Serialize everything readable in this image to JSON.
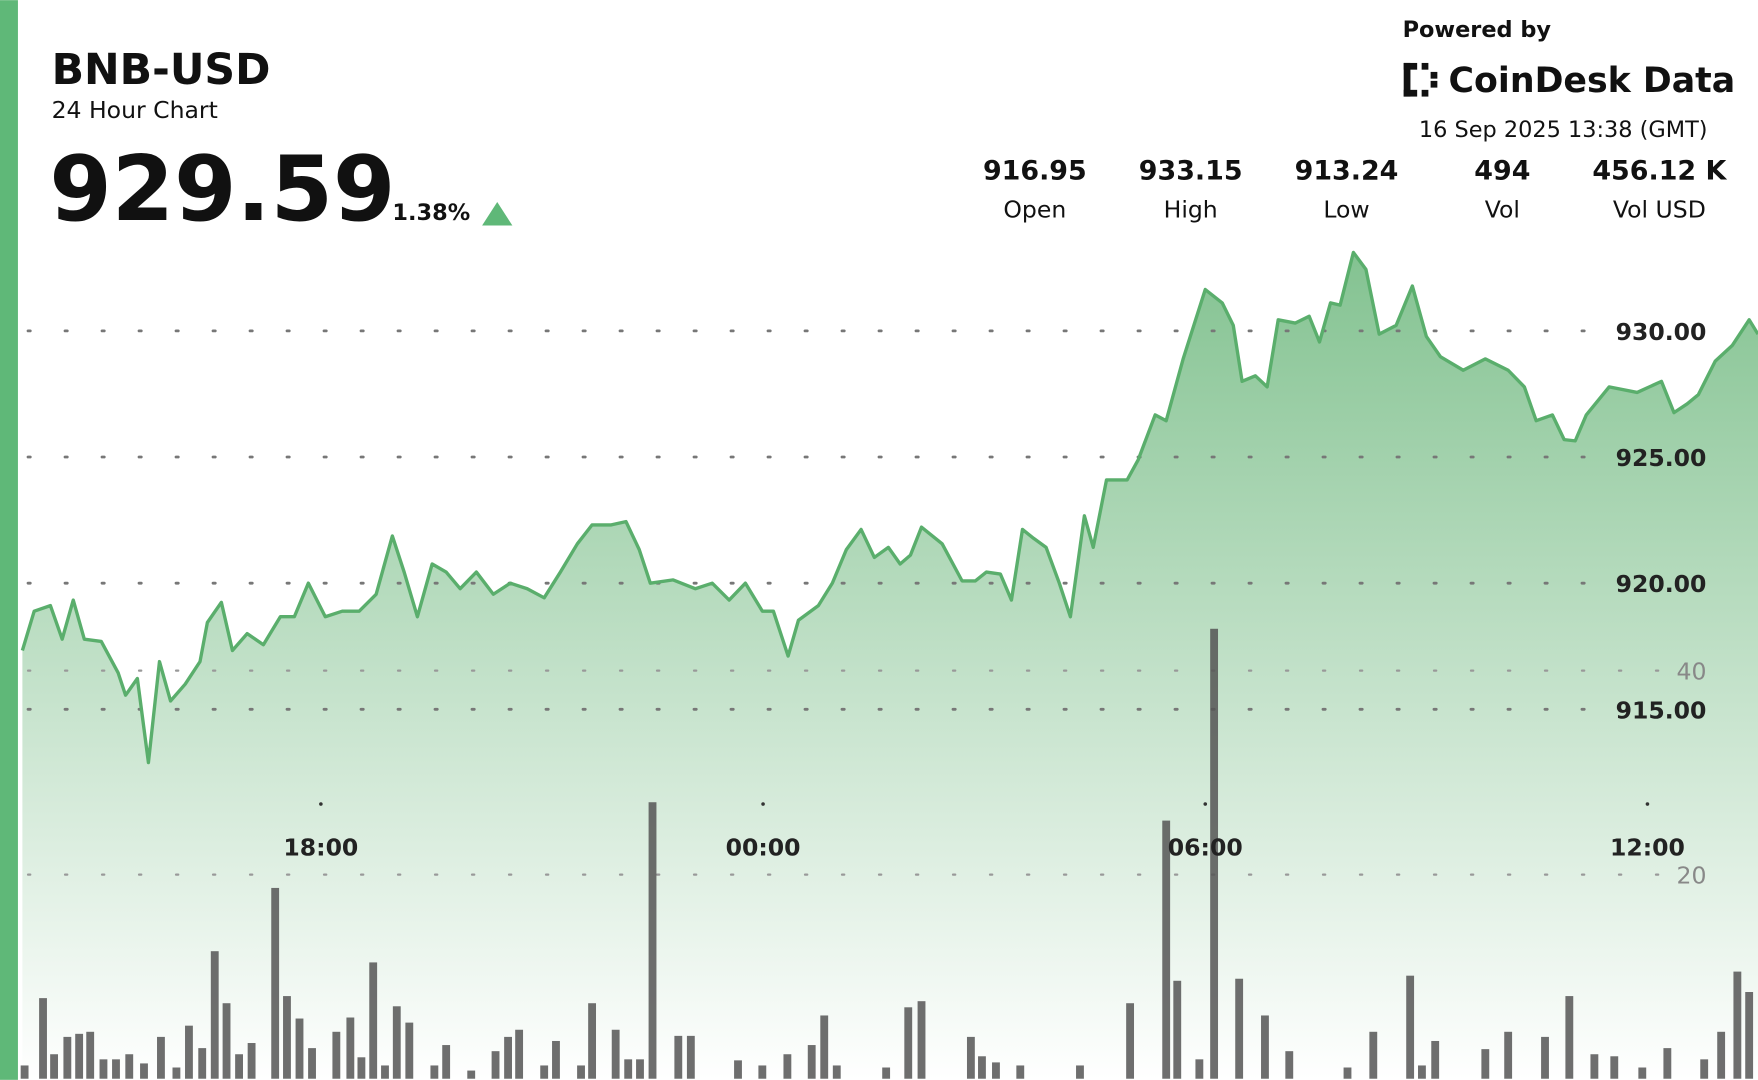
{
  "header": {
    "symbol": "BNB-USD",
    "subtitle": "24 Hour Chart",
    "price": "929.59",
    "change": "1.38%",
    "powered_by": "Powered by",
    "brand": "CoinDesk Data",
    "timestamp": "16 Sep 2025 13:38 (GMT)"
  },
  "stats": [
    {
      "value": "916.95",
      "label": "Open"
    },
    {
      "value": "933.15",
      "label": "High"
    },
    {
      "value": "913.24",
      "label": "Low"
    },
    {
      "value": "494",
      "label": "Vol"
    },
    {
      "value": "456.12 K",
      "label": "Vol USD"
    }
  ],
  "chart_data": [
    {
      "type": "area",
      "color": "#5aae6c",
      "grid": true,
      "xlim": [
        13.92,
        37.5
      ],
      "ylim": [
        900.5,
        934
      ],
      "xticks": [
        {
          "value": 18,
          "label": "18:00"
        },
        {
          "value": 24,
          "label": "00:00"
        },
        {
          "value": 30,
          "label": "06:00"
        },
        {
          "value": 36,
          "label": "12:00"
        }
      ],
      "yticks": [
        {
          "value": 915,
          "label": "915.00"
        },
        {
          "value": 920,
          "label": "920.00"
        },
        {
          "value": 925,
          "label": "925.00"
        },
        {
          "value": 930,
          "label": "930.00"
        }
      ],
      "x": [
        13.95,
        14.11,
        14.33,
        14.49,
        14.64,
        14.79,
        15.02,
        15.25,
        15.35,
        15.51,
        15.66,
        15.81,
        15.96,
        16.16,
        16.36,
        16.46,
        16.65,
        16.8,
        17.0,
        17.22,
        17.45,
        17.64,
        17.83,
        18.06,
        18.29,
        18.52,
        18.75,
        18.97,
        19.13,
        19.31,
        19.51,
        19.7,
        19.89,
        20.11,
        20.34,
        20.57,
        20.8,
        21.03,
        21.25,
        21.48,
        21.68,
        21.94,
        22.14,
        22.32,
        22.47,
        22.78,
        23.08,
        23.31,
        23.54,
        23.76,
        23.99,
        24.14,
        24.34,
        24.48,
        24.75,
        24.94,
        25.13,
        25.33,
        25.51,
        25.7,
        25.86,
        26.0,
        26.15,
        26.43,
        26.7,
        26.88,
        27.03,
        27.22,
        27.37,
        27.52,
        27.67,
        27.84,
        28.02,
        28.17,
        28.36,
        28.48,
        28.66,
        28.94,
        29.09,
        29.32,
        29.47,
        29.7,
        30.0,
        30.23,
        30.38,
        30.5,
        30.68,
        30.84,
        30.99,
        31.22,
        31.41,
        31.55,
        31.7,
        31.83,
        32.01,
        32.18,
        32.36,
        32.59,
        32.81,
        33.0,
        33.19,
        33.5,
        33.8,
        34.11,
        34.33,
        34.49,
        34.71,
        34.87,
        35.02,
        35.17,
        35.48,
        35.86,
        36.19,
        36.36,
        36.54,
        36.69,
        36.92,
        37.15,
        37.38,
        37.5
      ],
      "values": [
        917.33,
        918.89,
        919.11,
        917.78,
        919.33,
        917.78,
        917.69,
        916.44,
        915.56,
        916.22,
        912.89,
        916.89,
        915.33,
        916.0,
        916.89,
        918.44,
        919.24,
        917.33,
        918.0,
        917.56,
        918.67,
        918.67,
        920.0,
        918.67,
        918.89,
        918.89,
        919.56,
        921.87,
        920.44,
        918.67,
        920.76,
        920.44,
        919.78,
        920.44,
        919.56,
        920.0,
        919.78,
        919.42,
        920.44,
        921.56,
        922.31,
        922.31,
        922.44,
        921.33,
        920.0,
        920.13,
        919.78,
        920.0,
        919.33,
        920.0,
        918.89,
        918.89,
        917.11,
        918.53,
        919.11,
        920.0,
        921.33,
        922.13,
        921.02,
        921.42,
        920.76,
        921.11,
        922.22,
        921.56,
        920.09,
        920.09,
        920.44,
        920.36,
        919.33,
        922.13,
        921.78,
        921.42,
        920.0,
        918.67,
        922.67,
        921.42,
        924.09,
        924.09,
        924.89,
        926.67,
        926.44,
        928.89,
        931.64,
        931.11,
        930.22,
        928.0,
        928.22,
        927.78,
        930.44,
        930.31,
        930.58,
        929.56,
        931.11,
        931.02,
        933.11,
        932.44,
        929.87,
        930.22,
        931.78,
        929.78,
        928.98,
        928.44,
        928.89,
        928.44,
        927.78,
        926.44,
        926.67,
        925.69,
        925.64,
        926.67,
        927.78,
        927.56,
        928.0,
        926.76,
        927.11,
        927.47,
        928.8,
        929.42,
        930.44,
        929.87
      ]
    },
    {
      "type": "bar",
      "color": "#555555",
      "grid": true,
      "xlim": [
        13.92,
        37.5
      ],
      "ylim": [
        0,
        50
      ],
      "yticks": [
        20,
        40
      ],
      "x": [
        13.98,
        14.23,
        14.38,
        14.56,
        14.72,
        14.87,
        15.05,
        15.22,
        15.4,
        15.6,
        15.83,
        16.04,
        16.21,
        16.39,
        16.56,
        16.72,
        16.89,
        17.06,
        17.38,
        17.54,
        17.71,
        17.88,
        18.21,
        18.4,
        18.55,
        18.71,
        18.87,
        19.03,
        19.2,
        19.54,
        19.7,
        20.04,
        20.37,
        20.54,
        20.69,
        21.03,
        21.19,
        21.53,
        21.68,
        22.0,
        22.17,
        22.33,
        22.5,
        22.85,
        23.02,
        23.66,
        23.99,
        24.33,
        24.66,
        24.83,
        25.0,
        25.67,
        25.97,
        26.15,
        26.82,
        26.97,
        27.16,
        27.49,
        28.3,
        28.98,
        29.47,
        29.62,
        29.92,
        30.12,
        30.46,
        30.81,
        31.14,
        31.93,
        32.28,
        32.78,
        32.94,
        33.12,
        33.8,
        34.11,
        34.61,
        34.94,
        35.28,
        35.55,
        35.93,
        36.27,
        36.77,
        37.0,
        37.22,
        37.38
      ],
      "values": [
        1.3,
        7.9,
        2.4,
        4.1,
        4.4,
        4.6,
        1.9,
        1.9,
        2.4,
        1.5,
        4.1,
        1.1,
        5.2,
        3.0,
        12.5,
        7.4,
        2.4,
        3.5,
        18.7,
        8.1,
        5.9,
        3.0,
        4.6,
        6.0,
        2.1,
        11.4,
        1.3,
        7.1,
        5.5,
        1.3,
        3.3,
        0.8,
        2.7,
        4.1,
        4.8,
        1.3,
        3.7,
        1.3,
        7.4,
        4.8,
        1.9,
        1.9,
        27.1,
        4.2,
        4.2,
        1.8,
        1.3,
        2.4,
        3.3,
        6.2,
        1.3,
        1.1,
        7.0,
        7.6,
        4.1,
        2.2,
        1.6,
        1.3,
        1.3,
        7.4,
        25.3,
        9.6,
        1.9,
        44.1,
        9.8,
        6.2,
        2.7,
        1.1,
        4.6,
        10.1,
        1.3,
        3.7,
        2.9,
        4.6,
        4.1,
        8.1,
        2.4,
        2.2,
        1.1,
        3.0,
        1.9,
        4.6,
        10.5,
        8.5
      ]
    }
  ]
}
